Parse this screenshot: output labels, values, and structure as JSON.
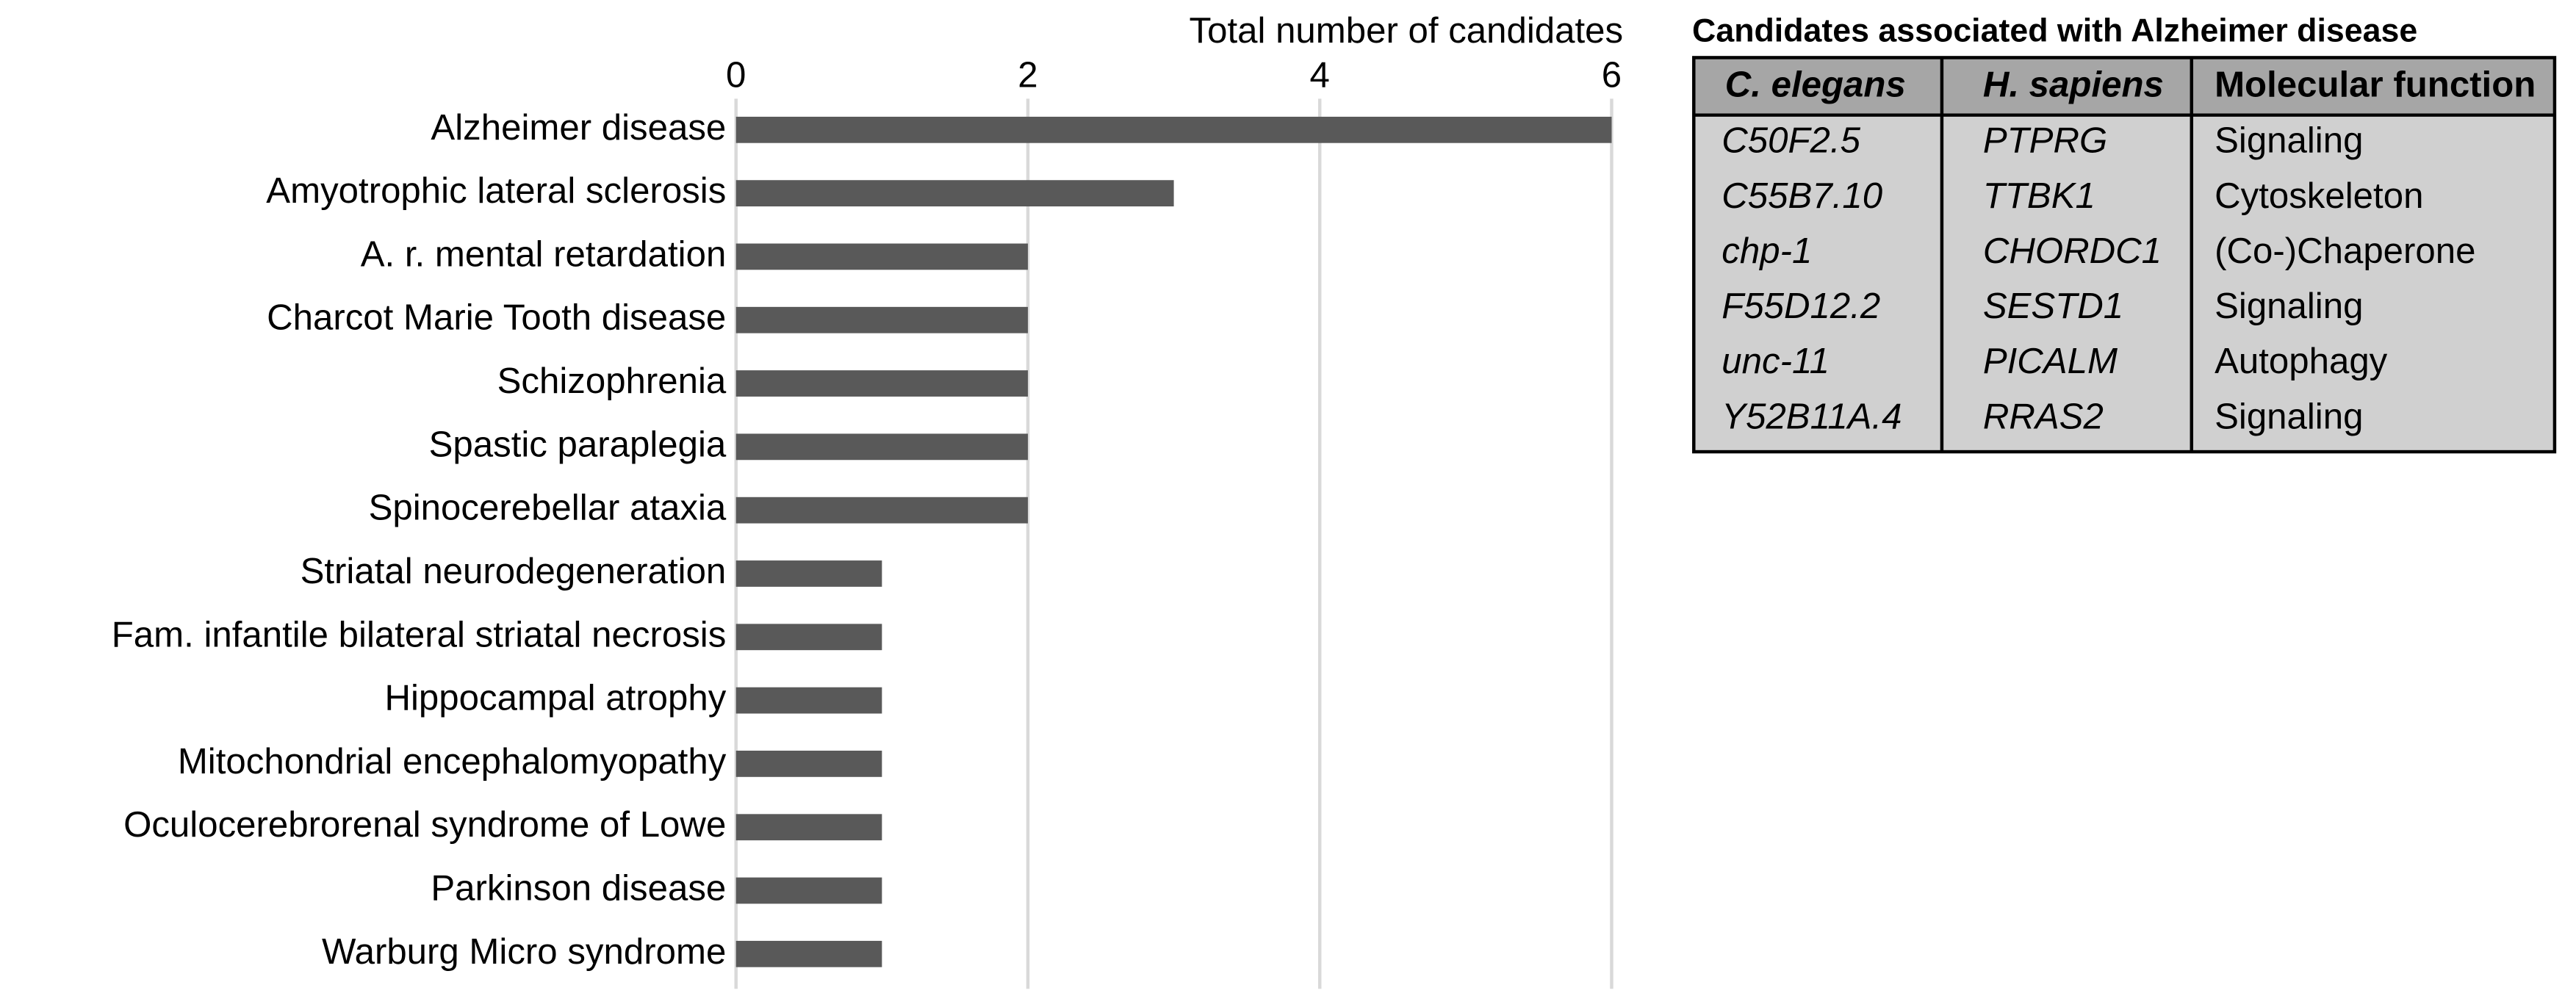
{
  "chart_data": {
    "type": "bar",
    "orientation": "horizontal",
    "x_label": "Total number of candidates",
    "categories": [
      "Alzheimer disease",
      "Amyotrophic lateral sclerosis",
      "A. r. mental retardation",
      "Charcot Marie Tooth disease",
      "Schizophrenia",
      "Spastic paraplegia",
      "Spinocerebellar ataxia",
      "Striatal neurodegeneration",
      "Fam. infantile bilateral striatal necrosis",
      "Hippocampal atrophy",
      "Mitochondrial encephalomyopathy",
      "Oculocerebrorenal syndrome of Lowe",
      "Parkinson disease",
      "Warburg Micro syndrome"
    ],
    "values": [
      6,
      3,
      2,
      2,
      2,
      2,
      2,
      1,
      1,
      1,
      1,
      1,
      1,
      1
    ],
    "color": "#595959",
    "xlim": [
      0,
      6
    ],
    "xticks": [
      0,
      2,
      4,
      6
    ],
    "grid": true
  },
  "table": {
    "title": "Candidates associated with Alzheimer disease",
    "columns": [
      "C. elegans",
      "H. sapiens",
      "Molecular function"
    ],
    "rows": [
      [
        "C50F2.5",
        "PTPRG",
        "Signaling"
      ],
      [
        "C55B7.10",
        "TTBK1",
        "Cytoskeleton"
      ],
      [
        "chp-1",
        "CHORDC1",
        "(Co-)Chaperone"
      ],
      [
        "F55D12.2",
        "SESTD1",
        "Signaling"
      ],
      [
        "unc-11",
        "PICALM",
        "Autophagy"
      ],
      [
        "Y52B11A.4",
        "RRAS2",
        "Signaling"
      ]
    ]
  }
}
